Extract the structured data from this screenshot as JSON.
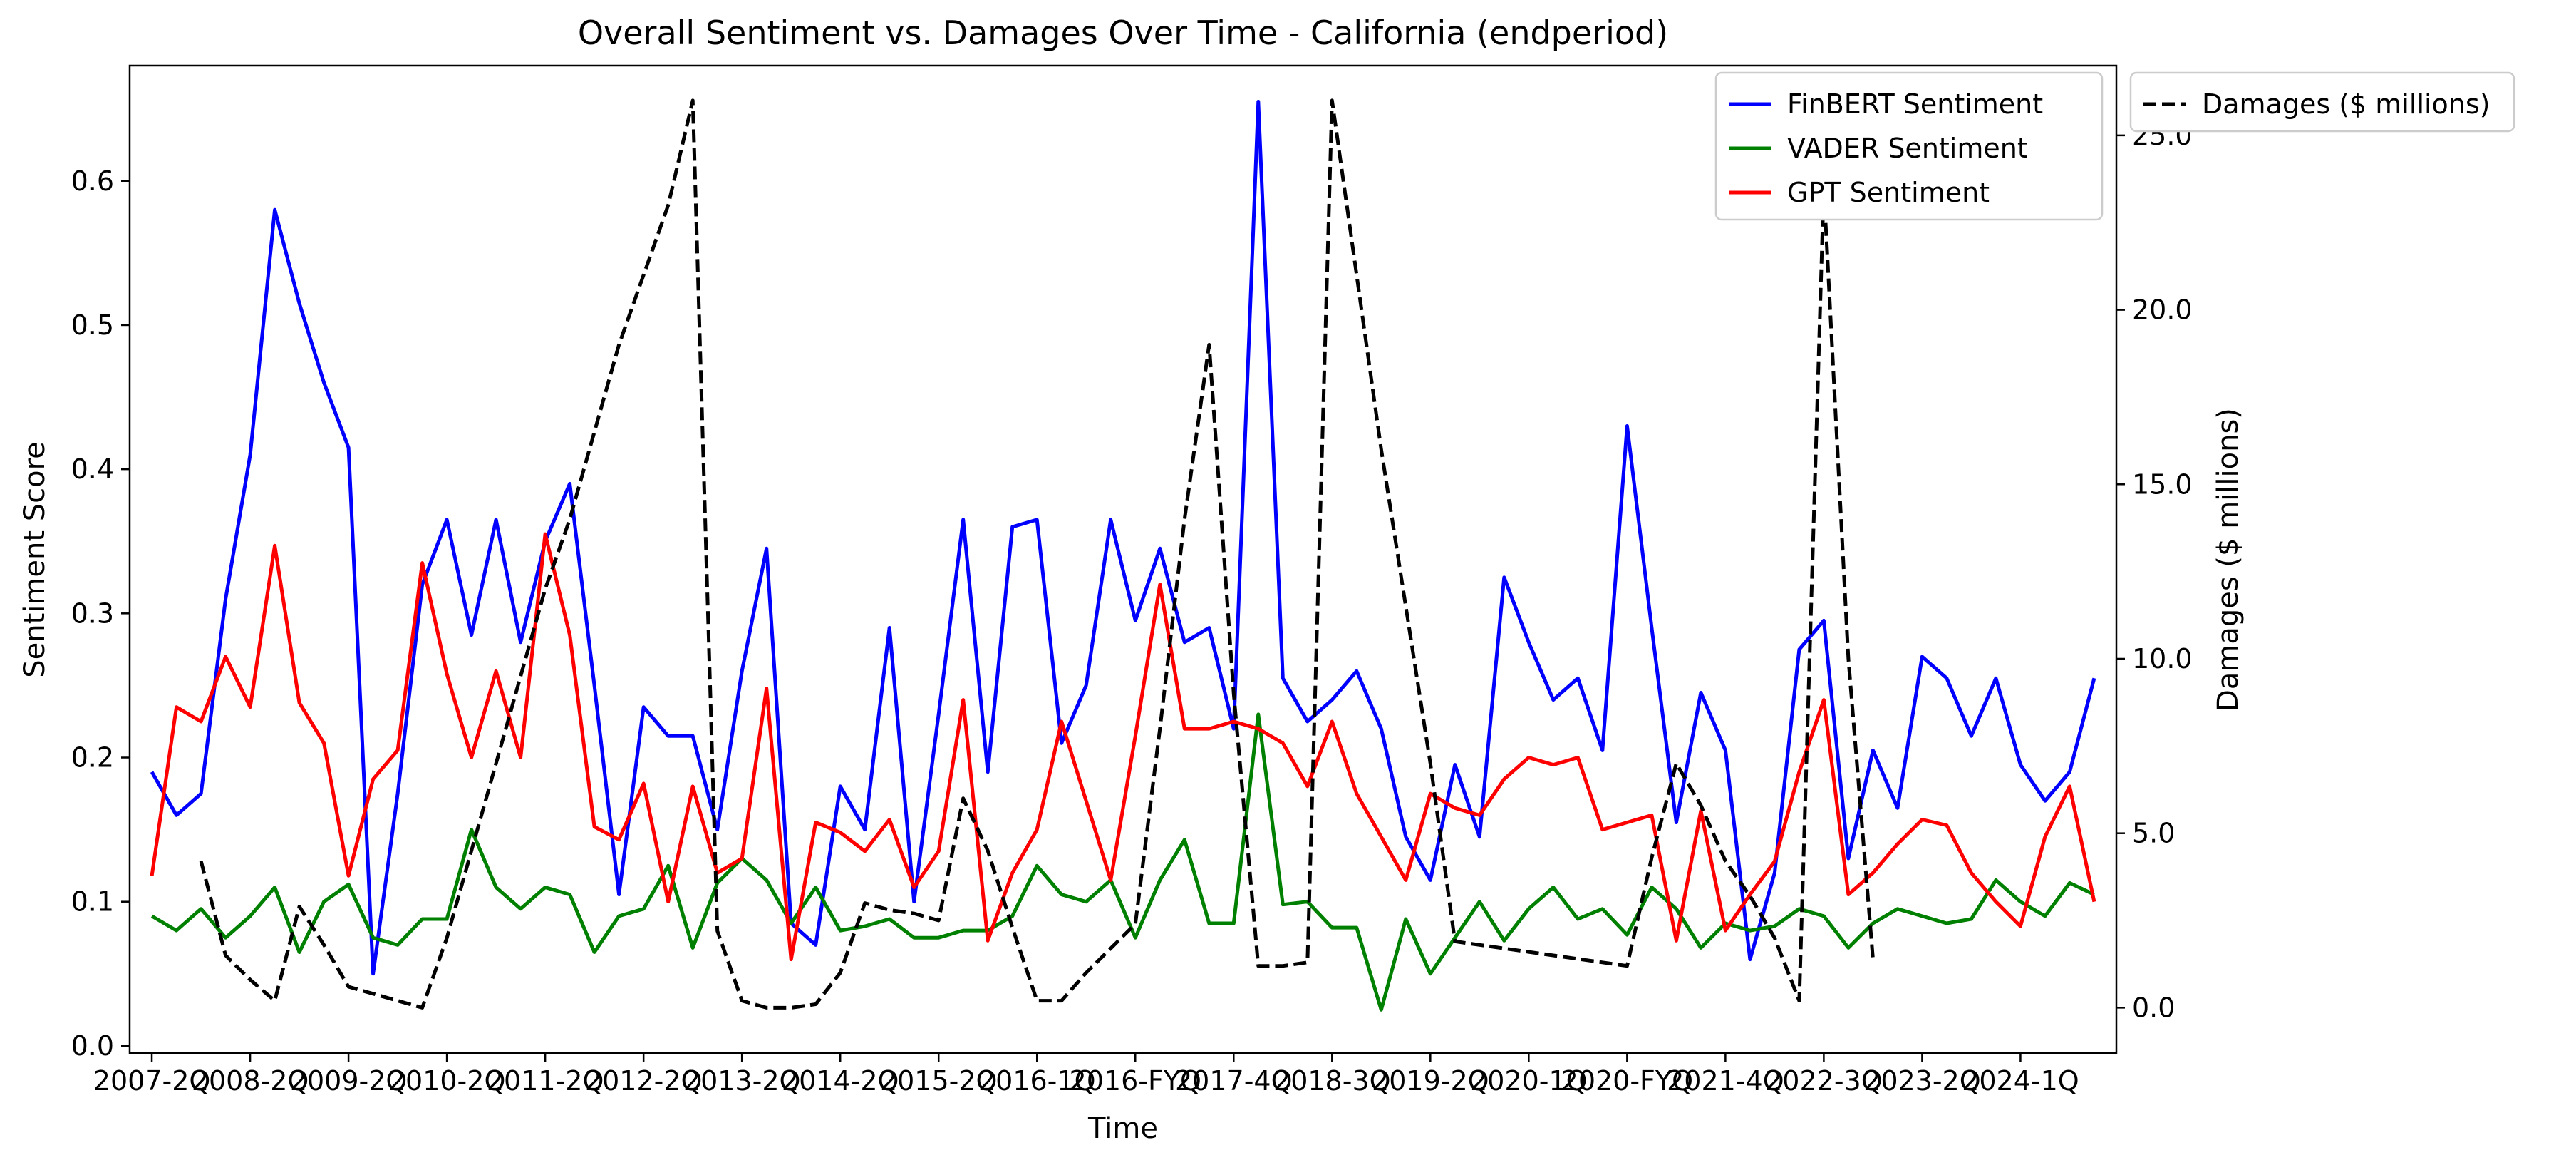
{
  "chart_data": {
    "type": "line",
    "title": "Overall Sentiment vs. Damages Over Time - California (endperiod)",
    "xlabel": "Time",
    "ylabel": "Sentiment Score",
    "y2label": "Damages ($ millions)",
    "ylim": [
      -0.005,
      0.68
    ],
    "y2lim": [
      -1.3,
      27.0
    ],
    "yticks": [
      "0.0",
      "0.1",
      "0.2",
      "0.3",
      "0.4",
      "0.5",
      "0.6"
    ],
    "y2ticks": [
      "0.0",
      "5.0",
      "10.0",
      "15.0",
      "20.0",
      "25.0"
    ],
    "xtick_labels": [
      "2007-2Q",
      "2008-2Q",
      "2009-2Q",
      "2010-2Q",
      "2011-2Q",
      "2012-2Q",
      "2013-2Q",
      "2014-2Q",
      "2015-2Q",
      "2016-1Q",
      "2016-FYQ",
      "2017-4Q",
      "2018-3Q",
      "2019-2Q",
      "2020-1Q",
      "2020-FYQ",
      "2021-4Q",
      "2022-3Q",
      "2023-2Q",
      "2024-1Q"
    ],
    "xtick_positions": [
      0,
      4,
      8,
      12,
      16,
      20,
      24,
      28,
      32,
      36,
      40,
      44,
      48,
      52,
      56,
      60,
      64,
      68,
      72,
      76
    ],
    "grid": false,
    "legend_position": "top-right",
    "series": [
      {
        "name": "FinBERT Sentiment",
        "axis": "left",
        "color": "#0000ff",
        "dash": "solid",
        "values": [
          0.19,
          0.16,
          0.175,
          0.31,
          0.41,
          0.58,
          0.515,
          0.46,
          0.415,
          0.05,
          0.175,
          0.32,
          0.365,
          0.285,
          0.365,
          0.28,
          0.35,
          0.39,
          0.25,
          0.105,
          0.235,
          0.215,
          0.215,
          0.15,
          0.26,
          0.345,
          0.085,
          0.07,
          0.18,
          0.15,
          0.29,
          0.1,
          0.23,
          0.365,
          0.19,
          0.36,
          0.365,
          0.21,
          0.25,
          0.365,
          0.295,
          0.345,
          0.28,
          0.29,
          0.22,
          0.655,
          0.255,
          0.225,
          0.24,
          0.26,
          0.22,
          0.145,
          0.115,
          0.195,
          0.145,
          0.325,
          0.28,
          0.24,
          0.255,
          0.205,
          0.43,
          0.29,
          0.155,
          0.245,
          0.205,
          0.06,
          0.12,
          0.275,
          0.295,
          0.13,
          0.205,
          0.165,
          0.27,
          0.255,
          0.215,
          0.255,
          0.195,
          0.17,
          0.19,
          0.255
        ]
      },
      {
        "name": "VADER Sentiment",
        "axis": "left",
        "color": "#008000",
        "dash": "solid",
        "values": [
          0.09,
          0.08,
          0.095,
          0.075,
          0.09,
          0.11,
          0.065,
          0.1,
          0.112,
          0.075,
          0.07,
          0.088,
          0.088,
          0.15,
          0.11,
          0.095,
          0.11,
          0.105,
          0.065,
          0.09,
          0.095,
          0.125,
          0.068,
          0.113,
          0.13,
          0.115,
          0.085,
          0.11,
          0.08,
          0.083,
          0.088,
          0.075,
          0.075,
          0.08,
          0.08,
          0.09,
          0.125,
          0.105,
          0.1,
          0.115,
          0.075,
          0.115,
          0.143,
          0.085,
          0.085,
          0.23,
          0.098,
          0.1,
          0.082,
          0.082,
          0.025,
          0.088,
          0.05,
          0.075,
          0.1,
          0.073,
          0.095,
          0.11,
          0.088,
          0.095,
          0.077,
          0.11,
          0.095,
          0.068,
          0.085,
          0.08,
          0.083,
          0.095,
          0.09,
          0.068,
          0.085,
          0.095,
          0.09,
          0.085,
          0.088,
          0.115,
          0.1,
          0.09,
          0.113,
          0.105
        ]
      },
      {
        "name": "GPT Sentiment",
        "axis": "left",
        "color": "#ff0000",
        "dash": "solid",
        "values": [
          0.118,
          0.235,
          0.225,
          0.27,
          0.235,
          0.347,
          0.238,
          0.21,
          0.118,
          0.185,
          0.205,
          0.335,
          0.258,
          0.2,
          0.26,
          0.2,
          0.355,
          0.285,
          0.152,
          0.143,
          0.182,
          0.1,
          0.18,
          0.12,
          0.13,
          0.248,
          0.06,
          0.155,
          0.148,
          0.135,
          0.157,
          0.11,
          0.135,
          0.24,
          0.073,
          0.12,
          0.15,
          0.225,
          0.17,
          0.115,
          0.215,
          0.32,
          0.22,
          0.22,
          0.225,
          0.22,
          0.21,
          0.18,
          0.225,
          0.175,
          0.145,
          0.115,
          0.175,
          0.165,
          0.16,
          0.185,
          0.2,
          0.195,
          0.2,
          0.15,
          0.155,
          0.16,
          0.073,
          0.163,
          0.08,
          0.105,
          0.128,
          0.19,
          0.24,
          0.105,
          0.12,
          0.14,
          0.157,
          0.153,
          0.12,
          0.1,
          0.083,
          0.145,
          0.18,
          0.1
        ]
      },
      {
        "name": "Damages ($ millions)",
        "axis": "right",
        "color": "#000000",
        "dash": "dashed",
        "values": [
          null,
          null,
          4.2,
          1.5,
          0.8,
          0.2,
          2.9,
          1.8,
          0.6,
          0.4,
          0.2,
          0.0,
          2.0,
          4.5,
          7.0,
          9.5,
          12.0,
          14.0,
          16.5,
          19.0,
          21.0,
          23.0,
          26.0,
          2.2,
          0.2,
          0.0,
          0.0,
          0.1,
          1.0,
          3.0,
          2.8,
          2.7,
          2.5,
          6.0,
          4.5,
          2.3,
          0.2,
          0.2,
          1.0,
          1.7,
          2.4,
          8.0,
          14.0,
          19.0,
          9.0,
          1.2,
          1.2,
          1.3,
          26.0,
          21.0,
          16.0,
          11.5,
          7.0,
          1.9,
          1.8,
          1.7,
          1.6,
          1.5,
          1.4,
          1.3,
          1.2,
          4.3,
          7.0,
          5.8,
          4.2,
          3.2,
          2.0,
          0.2,
          23.5,
          10.0,
          1.4
        ]
      }
    ]
  }
}
